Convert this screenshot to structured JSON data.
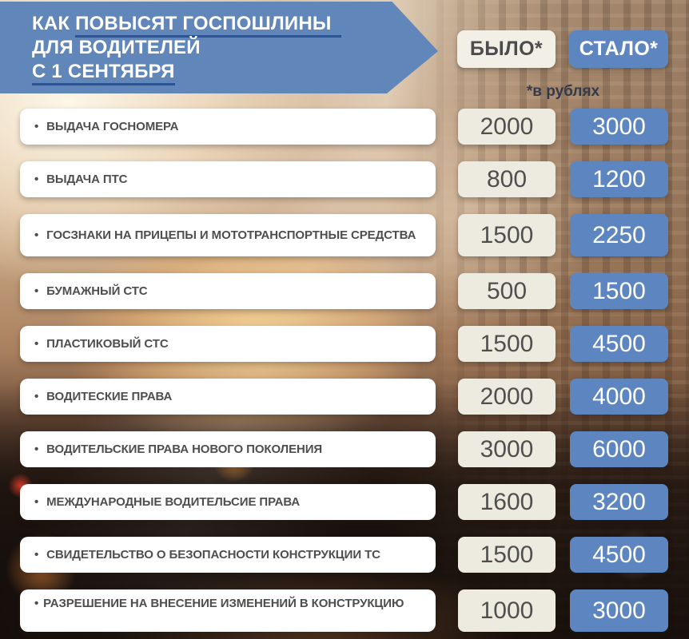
{
  "banner": {
    "line1_plain": "КАК ",
    "line1_underlined": "ПОВЫСЯТ ГОСПОШЛИНЫ",
    "line2": "ДЛЯ ВОДИТЕЛЕЙ",
    "line3_underlined": "С 1 СЕНТЯБРЯ"
  },
  "columns": {
    "was": "БЫЛО*",
    "now": "СТАЛО*",
    "units_note": "*в рублях"
  },
  "list": {
    "bullet": "•"
  },
  "colors": {
    "banner_blue": "#6186ba",
    "underline_blue": "#2d5390",
    "now_blue": "#5d86c1",
    "was_cream": "#edebe0",
    "label_white": "#ffffff",
    "text_gray": "#4e4e4e",
    "note_dark": "#333b49"
  },
  "chart_data": {
    "type": "table",
    "title": "КАК ПОВЫСЯТ ГОСПОШЛИНЫ ДЛЯ ВОДИТЕЛЕЙ С 1 СЕНТЯБРЯ",
    "columns": [
      "БЫЛО*",
      "СТАЛО*"
    ],
    "units": "в рублях",
    "rows": [
      {
        "label": "ВЫДАЧА ГОСНОМЕРА",
        "was": "2000",
        "now": "3000"
      },
      {
        "label": "ВЫДАЧА ПТС",
        "was": "800",
        "now": "1200"
      },
      {
        "label": "ГОСЗНАКИ НА ПРИЦЕПЫ И МОТОТРАНСПОРТНЫЕ СРЕДСТВА",
        "was": "1500",
        "now": "2250"
      },
      {
        "label": "БУМАЖНЫЙ СТС",
        "was": "500",
        "now": "1500"
      },
      {
        "label": "ПЛАСТИКОВЫЙ СТС",
        "was": "1500",
        "now": "4500"
      },
      {
        "label": "ВОДИТЕСКИЕ ПРАВА",
        "was": "2000",
        "now": "4000"
      },
      {
        "label": "ВОДИТЕЛЬСКИЕ ПРАВА НОВОГО ПОКОЛЕНИЯ",
        "was": "3000",
        "now": "6000"
      },
      {
        "label": "МЕЖДУНАРОДНЫЕ ВОДИТЕЛЬСИЕ ПРАВА",
        "was": "1600",
        "now": "3200"
      },
      {
        "label": "СВИДЕТЕЛЬСТВО О БЕЗОПАСНОСТИ КОНСТРУКЦИИ ТС",
        "was": "1500",
        "now": "4500"
      },
      {
        "label": "РАЗРЕШЕНИЕ НА ВНЕСЕНИЕ ИЗМЕНЕНИЙ В КОНСТРУКЦИЮ",
        "was": "1000",
        "now": "3000"
      }
    ]
  }
}
